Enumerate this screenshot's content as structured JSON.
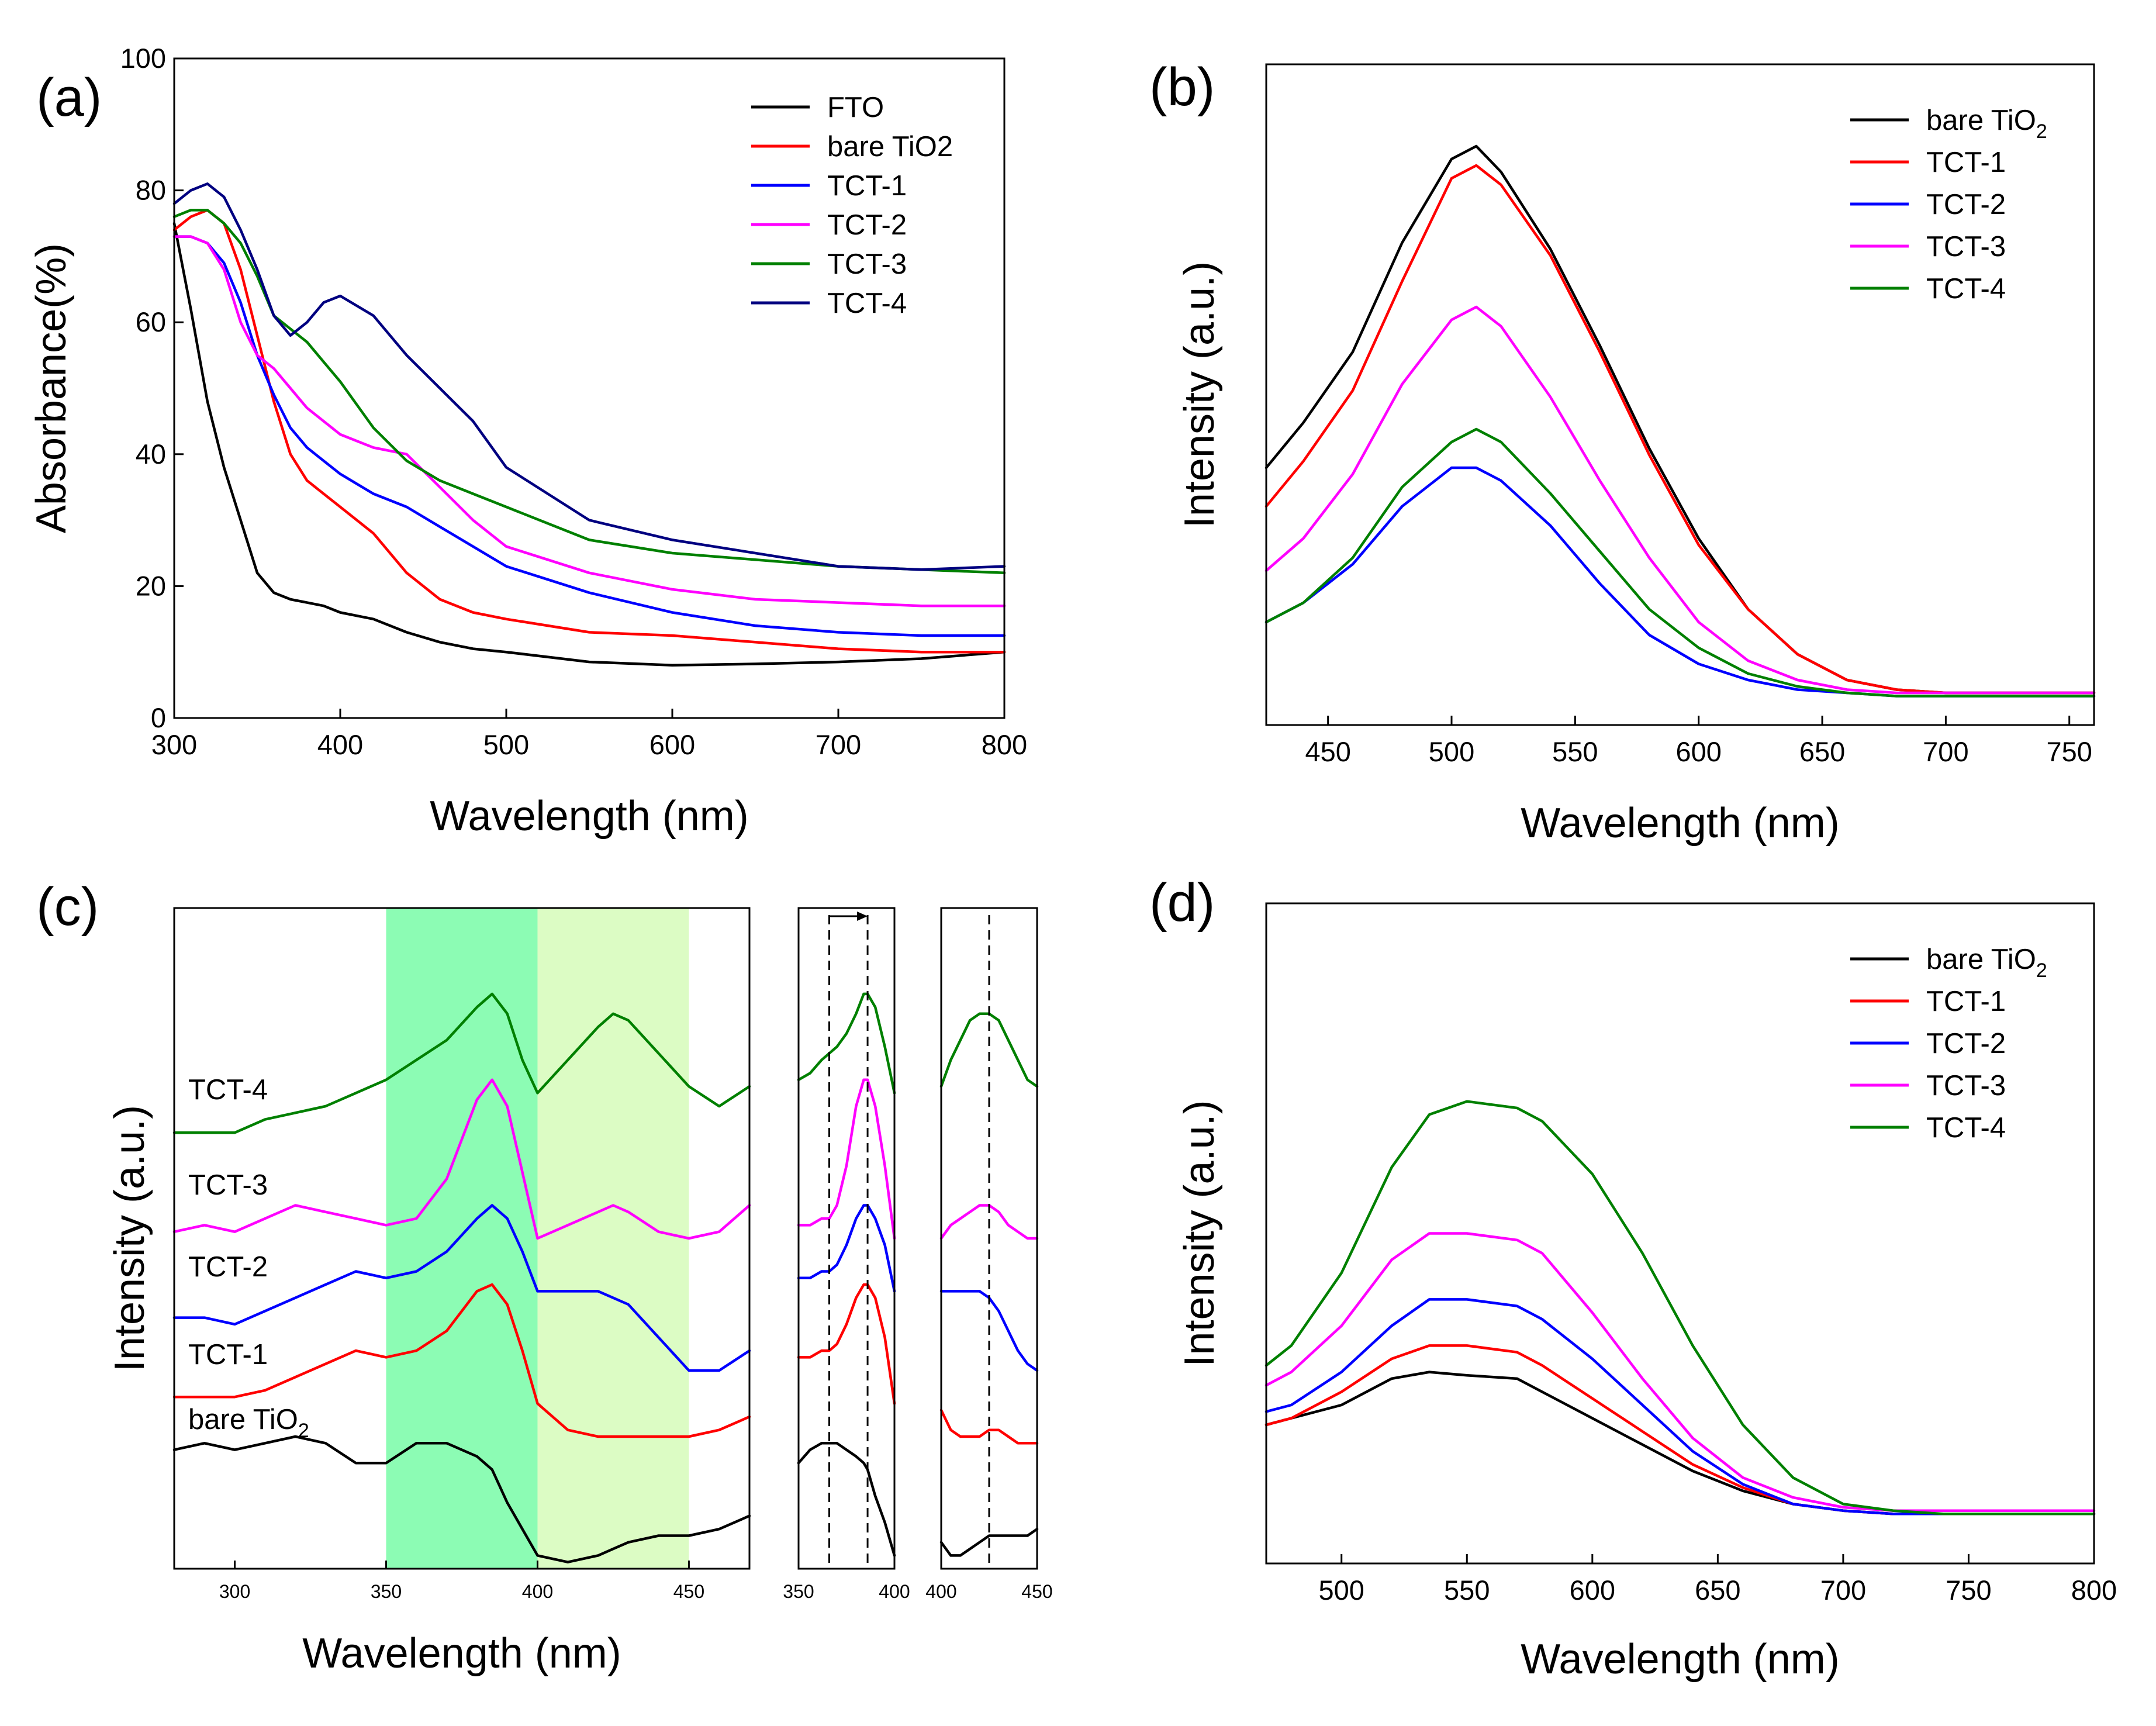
{
  "figure": {
    "panel_labels": [
      "(a)",
      "(b)",
      "(c)",
      "(d)"
    ],
    "legend_subscript": "2"
  },
  "colors": {
    "black": "#000000",
    "red": "#ff0000",
    "blue": "#0000ff",
    "magenta": "#ff00ff",
    "green": "#008000",
    "navy": "#000080",
    "band_dark": "#8cfcb4",
    "band_light": "#dcfcc4"
  },
  "chart_data": [
    {
      "id": "a",
      "type": "line",
      "title": "",
      "xlabel": "Wavelength (nm)",
      "ylabel": "Absorbance(%)",
      "xlim": [
        300,
        800
      ],
      "ylim": [
        0,
        100
      ],
      "xticks": [
        300,
        400,
        500,
        600,
        700,
        800
      ],
      "yticks": [
        0,
        20,
        40,
        60,
        80,
        100
      ],
      "legend_position": "top-right",
      "x": [
        300,
        310,
        320,
        330,
        340,
        350,
        360,
        370,
        380,
        390,
        400,
        420,
        440,
        460,
        480,
        500,
        550,
        600,
        650,
        700,
        750,
        800
      ],
      "series": [
        {
          "name": "FTO",
          "color": "#000000",
          "values": [
            75,
            62,
            48,
            38,
            30,
            22,
            19,
            18,
            17.5,
            17,
            16,
            15,
            13,
            11.5,
            10.5,
            10,
            8.5,
            8,
            8.2,
            8.5,
            9,
            10
          ]
        },
        {
          "name": "bare TiO2",
          "color": "#ff0000",
          "values": [
            74,
            76,
            77,
            75,
            68,
            58,
            48,
            40,
            36,
            34,
            32,
            28,
            22,
            18,
            16,
            15,
            13,
            12.5,
            11.5,
            10.5,
            10,
            10
          ]
        },
        {
          "name": "TCT-1",
          "color": "#0000ff",
          "values": [
            73,
            73,
            72,
            69,
            63,
            55,
            49,
            44,
            41,
            39,
            37,
            34,
            32,
            29,
            26,
            23,
            19,
            16,
            14,
            13,
            12.5,
            12.5
          ]
        },
        {
          "name": "TCT-2",
          "color": "#ff00ff",
          "values": [
            73,
            73,
            72,
            68,
            60,
            55,
            53,
            50,
            47,
            45,
            43,
            41,
            40,
            35,
            30,
            26,
            22,
            19.5,
            18,
            17.5,
            17,
            17
          ]
        },
        {
          "name": "TCT-3",
          "color": "#008000",
          "values": [
            76,
            77,
            77,
            75,
            72,
            67,
            61,
            59,
            57,
            54,
            51,
            44,
            39,
            36,
            34,
            32,
            27,
            25,
            24,
            23,
            22.5,
            22
          ]
        },
        {
          "name": "TCT-4",
          "color": "#000080",
          "values": [
            78,
            80,
            81,
            79,
            74,
            68,
            61,
            58,
            60,
            63,
            64,
            61,
            55,
            50,
            45,
            38,
            30,
            27,
            25,
            23,
            22.5,
            23
          ]
        }
      ]
    },
    {
      "id": "b",
      "type": "line",
      "title": "",
      "xlabel": "Wavelength (nm)",
      "ylabel": "Intensity (a.u.)",
      "xlim": [
        425,
        760
      ],
      "ylim": [
        0,
        1
      ],
      "xticks": [
        450,
        500,
        550,
        600,
        650,
        700,
        750
      ],
      "yticks": [],
      "legend_position": "top-right",
      "x": [
        425,
        440,
        460,
        480,
        500,
        510,
        520,
        540,
        560,
        580,
        600,
        620,
        640,
        660,
        680,
        700,
        720,
        740,
        760
      ],
      "series": [
        {
          "name": "bare TiO2",
          "color": "#000000",
          "values": [
            0.4,
            0.47,
            0.58,
            0.75,
            0.88,
            0.9,
            0.86,
            0.74,
            0.59,
            0.43,
            0.29,
            0.18,
            0.11,
            0.07,
            0.055,
            0.05,
            0.05,
            0.05,
            0.05
          ]
        },
        {
          "name": "TCT-1",
          "color": "#ff0000",
          "values": [
            0.34,
            0.41,
            0.52,
            0.69,
            0.85,
            0.87,
            0.84,
            0.73,
            0.58,
            0.42,
            0.28,
            0.18,
            0.11,
            0.07,
            0.055,
            0.05,
            0.05,
            0.05,
            0.05
          ]
        },
        {
          "name": "TCT-2",
          "color": "#0000ff",
          "values": [
            0.16,
            0.19,
            0.25,
            0.34,
            0.4,
            0.4,
            0.38,
            0.31,
            0.22,
            0.14,
            0.095,
            0.07,
            0.055,
            0.05,
            0.045,
            0.045,
            0.045,
            0.045,
            0.045
          ]
        },
        {
          "name": "TCT-3",
          "color": "#ff00ff",
          "values": [
            0.24,
            0.29,
            0.39,
            0.53,
            0.63,
            0.65,
            0.62,
            0.51,
            0.38,
            0.26,
            0.16,
            0.1,
            0.07,
            0.055,
            0.05,
            0.05,
            0.05,
            0.05,
            0.05
          ]
        },
        {
          "name": "TCT-4",
          "color": "#008000",
          "values": [
            0.16,
            0.19,
            0.26,
            0.37,
            0.44,
            0.46,
            0.44,
            0.36,
            0.27,
            0.18,
            0.12,
            0.08,
            0.06,
            0.05,
            0.045,
            0.045,
            0.045,
            0.045,
            0.045
          ]
        }
      ]
    },
    {
      "id": "c",
      "type": "line",
      "title": "",
      "xlabel": "Wavelength (nm)",
      "ylabel": "Intensity (a.u.)",
      "xlim": [
        280,
        470
      ],
      "ylim": [
        0,
        1
      ],
      "xticks": [
        300,
        350,
        400,
        450
      ],
      "yticks": [],
      "bands": [
        {
          "from": 350,
          "to": 400,
          "color": "#8cfcb4"
        },
        {
          "from": 400,
          "to": 450,
          "color": "#dcfcc4"
        }
      ],
      "x": [
        280,
        290,
        300,
        310,
        320,
        330,
        340,
        350,
        360,
        370,
        380,
        385,
        390,
        395,
        400,
        410,
        420,
        425,
        430,
        440,
        450,
        460,
        470
      ],
      "series": [
        {
          "name": "bare TiO2",
          "label": "bare TiO",
          "color": "#000000",
          "values": [
            0.18,
            0.19,
            0.18,
            0.19,
            0.2,
            0.19,
            0.16,
            0.16,
            0.19,
            0.19,
            0.17,
            0.15,
            0.1,
            0.06,
            0.02,
            0.01,
            0.02,
            0.03,
            0.04,
            0.05,
            0.05,
            0.06,
            0.08
          ]
        },
        {
          "name": "TCT-1",
          "label": "TCT-1",
          "color": "#ff0000",
          "values": [
            0.26,
            0.26,
            0.26,
            0.27,
            0.29,
            0.31,
            0.33,
            0.32,
            0.33,
            0.36,
            0.42,
            0.43,
            0.4,
            0.33,
            0.25,
            0.21,
            0.2,
            0.2,
            0.2,
            0.2,
            0.2,
            0.21,
            0.23
          ]
        },
        {
          "name": "TCT-2",
          "label": "TCT-2",
          "color": "#0000ff",
          "values": [
            0.38,
            0.38,
            0.37,
            0.39,
            0.41,
            0.43,
            0.45,
            0.44,
            0.45,
            0.48,
            0.53,
            0.55,
            0.53,
            0.48,
            0.42,
            0.42,
            0.42,
            0.41,
            0.4,
            0.35,
            0.3,
            0.3,
            0.33
          ]
        },
        {
          "name": "TCT-3",
          "label": "TCT-3",
          "color": "#ff00ff",
          "values": [
            0.51,
            0.52,
            0.51,
            0.53,
            0.55,
            0.54,
            0.53,
            0.52,
            0.53,
            0.59,
            0.71,
            0.74,
            0.7,
            0.6,
            0.5,
            0.52,
            0.54,
            0.55,
            0.54,
            0.51,
            0.5,
            0.51,
            0.55
          ]
        },
        {
          "name": "TCT-4",
          "label": "TCT-4",
          "color": "#008000",
          "values": [
            0.66,
            0.66,
            0.66,
            0.68,
            0.69,
            0.7,
            0.72,
            0.74,
            0.77,
            0.8,
            0.85,
            0.87,
            0.84,
            0.77,
            0.72,
            0.77,
            0.82,
            0.84,
            0.83,
            0.78,
            0.73,
            0.7,
            0.73
          ]
        }
      ]
    },
    {
      "id": "c-inset-1",
      "type": "line",
      "xlim": [
        350,
        400
      ],
      "ylim": [
        0,
        1
      ],
      "xticks": [
        350,
        400
      ],
      "dashed_x": [
        366,
        386
      ],
      "x": [
        350,
        356,
        362,
        366,
        370,
        375,
        380,
        384,
        386,
        390,
        395,
        400
      ],
      "series": [
        {
          "name": "bare TiO2",
          "color": "#000000",
          "values": [
            0.16,
            0.18,
            0.19,
            0.19,
            0.19,
            0.18,
            0.17,
            0.16,
            0.15,
            0.11,
            0.07,
            0.02
          ]
        },
        {
          "name": "TCT-1",
          "color": "#ff0000",
          "values": [
            0.32,
            0.32,
            0.33,
            0.33,
            0.34,
            0.37,
            0.41,
            0.43,
            0.43,
            0.41,
            0.35,
            0.25
          ]
        },
        {
          "name": "TCT-2",
          "color": "#0000ff",
          "values": [
            0.44,
            0.44,
            0.45,
            0.45,
            0.46,
            0.49,
            0.53,
            0.55,
            0.55,
            0.53,
            0.49,
            0.42
          ]
        },
        {
          "name": "TCT-3",
          "color": "#ff00ff",
          "values": [
            0.52,
            0.52,
            0.53,
            0.53,
            0.55,
            0.61,
            0.7,
            0.74,
            0.74,
            0.7,
            0.61,
            0.5
          ]
        },
        {
          "name": "TCT-4",
          "color": "#008000",
          "values": [
            0.74,
            0.75,
            0.77,
            0.78,
            0.79,
            0.81,
            0.84,
            0.87,
            0.87,
            0.85,
            0.79,
            0.72
          ]
        }
      ]
    },
    {
      "id": "c-inset-2",
      "type": "line",
      "xlim": [
        400,
        450
      ],
      "ylim": [
        0,
        1
      ],
      "xticks": [
        400,
        450
      ],
      "dashed_x": [
        425
      ],
      "x": [
        400,
        405,
        410,
        415,
        420,
        425,
        430,
        435,
        440,
        445,
        450
      ],
      "series": [
        {
          "name": "bare TiO2",
          "color": "#000000",
          "values": [
            0.04,
            0.02,
            0.02,
            0.03,
            0.04,
            0.05,
            0.05,
            0.05,
            0.05,
            0.05,
            0.06
          ]
        },
        {
          "name": "TCT-1",
          "color": "#ff0000",
          "values": [
            0.24,
            0.21,
            0.2,
            0.2,
            0.2,
            0.21,
            0.21,
            0.2,
            0.19,
            0.19,
            0.19
          ]
        },
        {
          "name": "TCT-2",
          "color": "#0000ff",
          "values": [
            0.42,
            0.42,
            0.42,
            0.42,
            0.42,
            0.41,
            0.39,
            0.36,
            0.33,
            0.31,
            0.3
          ]
        },
        {
          "name": "TCT-3",
          "color": "#ff00ff",
          "values": [
            0.5,
            0.52,
            0.53,
            0.54,
            0.55,
            0.55,
            0.54,
            0.52,
            0.51,
            0.5,
            0.5
          ]
        },
        {
          "name": "TCT-4",
          "color": "#008000",
          "values": [
            0.73,
            0.77,
            0.8,
            0.83,
            0.84,
            0.84,
            0.83,
            0.8,
            0.77,
            0.74,
            0.73
          ]
        }
      ]
    },
    {
      "id": "d",
      "type": "line",
      "title": "",
      "xlabel": "Wavelength (nm)",
      "ylabel": "Intensity (a.u.)",
      "xlim": [
        470,
        800
      ],
      "ylim": [
        0,
        1
      ],
      "xticks": [
        500,
        550,
        600,
        650,
        700,
        750,
        800
      ],
      "yticks": [],
      "legend_position": "top-right",
      "x": [
        470,
        480,
        500,
        520,
        535,
        550,
        570,
        580,
        600,
        620,
        640,
        660,
        680,
        700,
        720,
        740,
        760,
        780,
        800
      ],
      "series": [
        {
          "name": "bare TiO2",
          "color": "#000000",
          "values": [
            0.21,
            0.22,
            0.24,
            0.28,
            0.29,
            0.285,
            0.28,
            0.26,
            0.22,
            0.18,
            0.14,
            0.11,
            0.09,
            0.08,
            0.075,
            0.075,
            0.075,
            0.075,
            0.075
          ]
        },
        {
          "name": "TCT-1",
          "color": "#ff0000",
          "values": [
            0.21,
            0.22,
            0.26,
            0.31,
            0.33,
            0.33,
            0.32,
            0.3,
            0.25,
            0.2,
            0.15,
            0.115,
            0.09,
            0.08,
            0.075,
            0.075,
            0.075,
            0.075,
            0.075
          ]
        },
        {
          "name": "TCT-2",
          "color": "#0000ff",
          "values": [
            0.23,
            0.24,
            0.29,
            0.36,
            0.4,
            0.4,
            0.39,
            0.37,
            0.31,
            0.24,
            0.17,
            0.12,
            0.09,
            0.08,
            0.075,
            0.075,
            0.075,
            0.075,
            0.075
          ]
        },
        {
          "name": "TCT-3",
          "color": "#ff00ff",
          "values": [
            0.27,
            0.29,
            0.36,
            0.46,
            0.5,
            0.5,
            0.49,
            0.47,
            0.38,
            0.28,
            0.19,
            0.13,
            0.1,
            0.085,
            0.08,
            0.08,
            0.08,
            0.08,
            0.08
          ]
        },
        {
          "name": "TCT-4",
          "color": "#008000",
          "values": [
            0.3,
            0.33,
            0.44,
            0.6,
            0.68,
            0.7,
            0.69,
            0.67,
            0.59,
            0.47,
            0.33,
            0.21,
            0.13,
            0.09,
            0.08,
            0.075,
            0.075,
            0.075,
            0.075
          ]
        }
      ]
    }
  ]
}
